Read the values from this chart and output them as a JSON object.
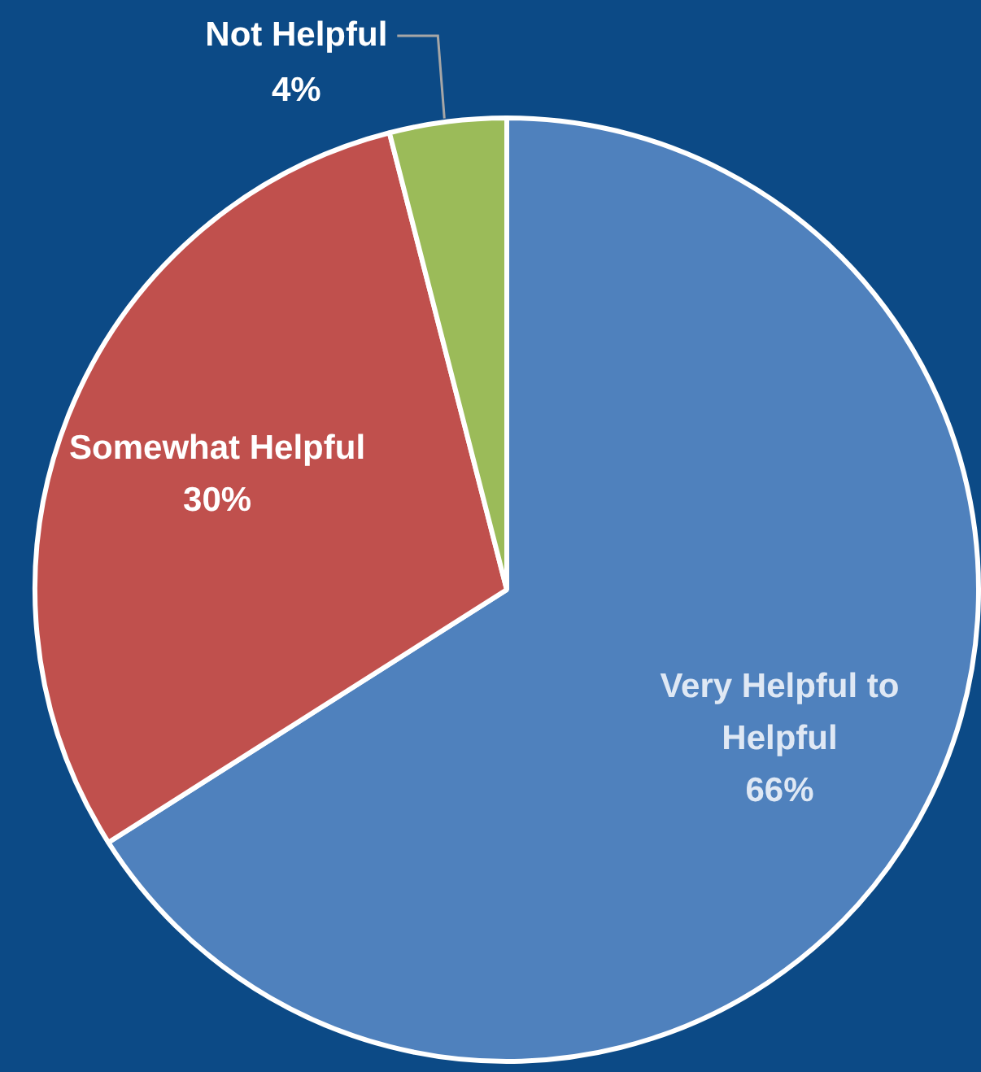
{
  "chart_data": {
    "type": "pie",
    "categories": [
      "Very Helpful to Helpful",
      "Somewhat Helpful",
      "Not Helpful"
    ],
    "values": [
      66,
      30,
      4
    ],
    "colors": [
      "#4f81bd",
      "#c0504d",
      "#9bbb59"
    ],
    "value_labels": [
      "66%",
      "30%",
      "4%"
    ],
    "legend": false
  }
}
